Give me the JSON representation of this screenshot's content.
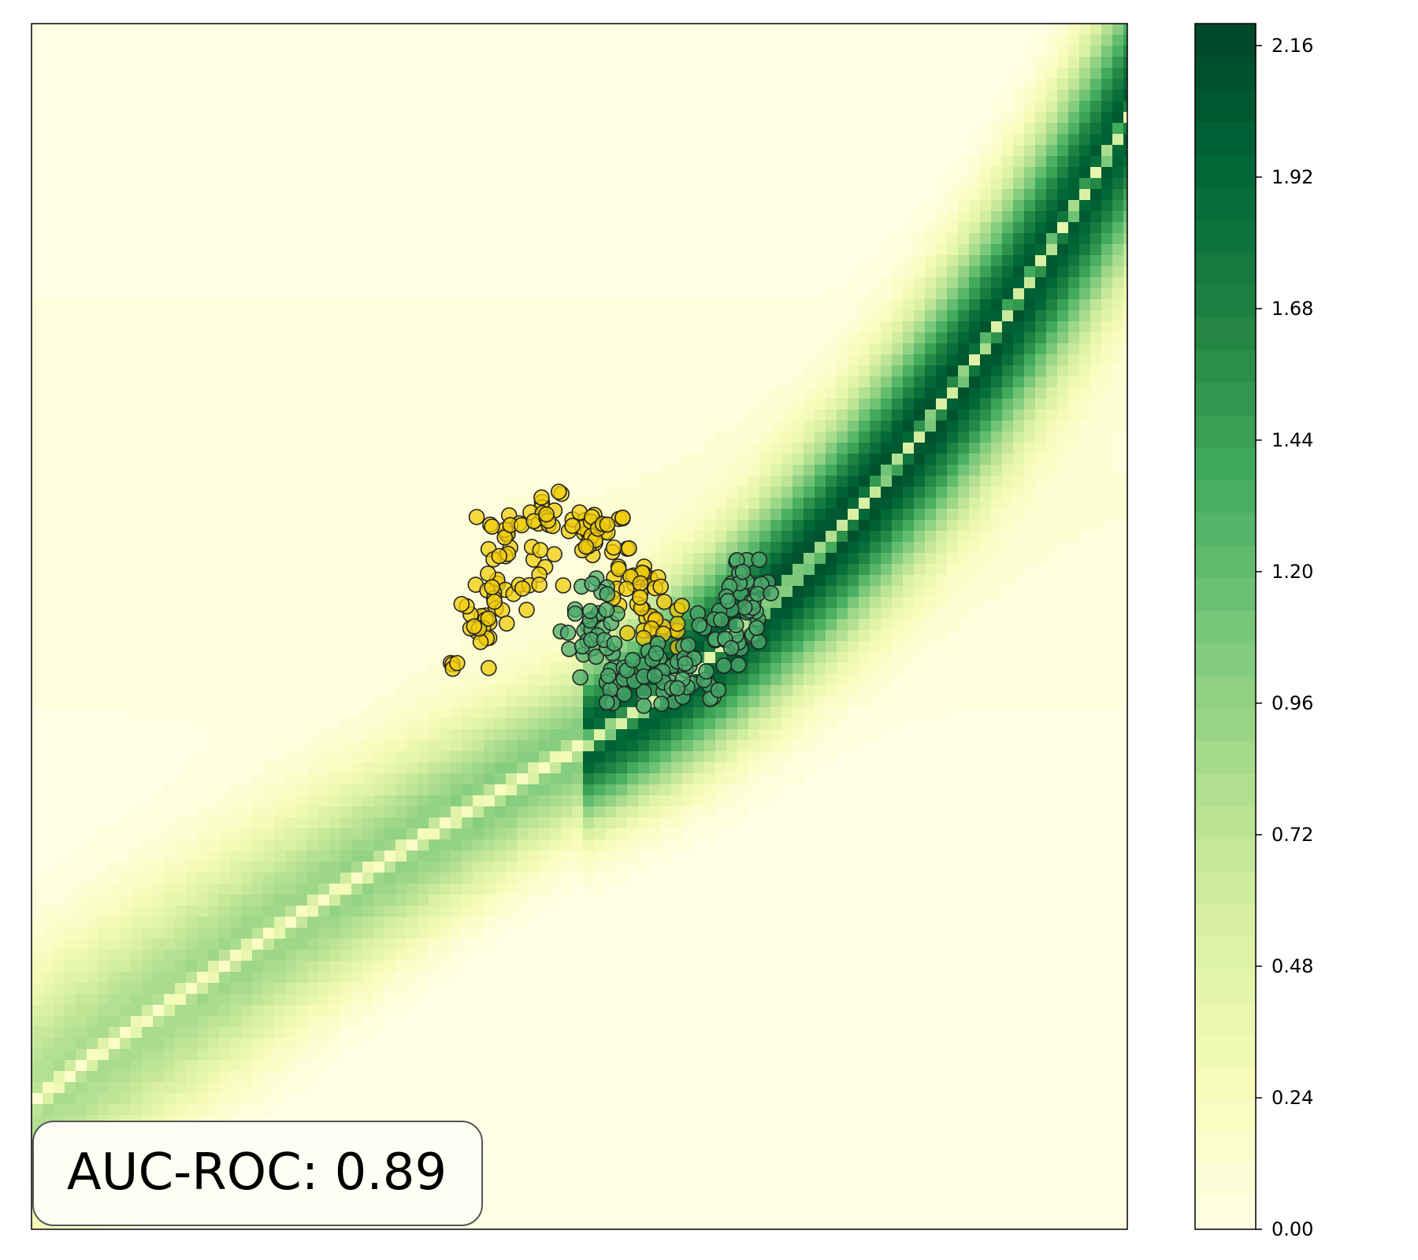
{
  "chart_data": {
    "type": "scatter",
    "title": "",
    "xlabel": "",
    "ylabel": "",
    "xlim": [
      -6,
      6
    ],
    "ylim": [
      -6,
      6
    ],
    "grid": false,
    "background": "contourf uncertainty map (YlGn colormap)",
    "colorbar": {
      "min": 0.0,
      "max": 2.2,
      "ticks": [
        "0.00",
        "0.24",
        "0.48",
        "0.72",
        "0.96",
        "1.20",
        "1.44",
        "1.68",
        "1.92",
        "2.16"
      ],
      "colors": [
        "#ffffe5",
        "#f7fcb9",
        "#d9f0a3",
        "#addd8e",
        "#78c679",
        "#41ab5d",
        "#238443",
        "#006837",
        "#004529"
      ]
    },
    "series": [
      {
        "class": 0,
        "color": "#f2cc0c",
        "points": [
          [
            -0.9,
            0.9
          ],
          [
            -0.6,
            1.1
          ],
          [
            -0.3,
            1.15
          ],
          [
            0.0,
            1.05
          ],
          [
            0.3,
            0.9
          ],
          [
            0.6,
            0.6
          ],
          [
            0.8,
            0.3
          ],
          [
            0.9,
            0.0
          ],
          [
            -1.0,
            0.5
          ],
          [
            -1.1,
            0.1
          ],
          [
            -1.2,
            -0.2
          ],
          [
            -0.8,
            0.2
          ],
          [
            -0.4,
            0.6
          ],
          [
            0.1,
            0.8
          ],
          [
            0.5,
            0.4
          ],
          [
            0.75,
            0.1
          ]
        ]
      },
      {
        "class": 1,
        "color": "#4bab6c",
        "points": [
          [
            0.1,
            0.3
          ],
          [
            0.0,
            -0.1
          ],
          [
            0.2,
            -0.4
          ],
          [
            0.5,
            -0.55
          ],
          [
            0.9,
            -0.6
          ],
          [
            1.3,
            -0.5
          ],
          [
            1.6,
            -0.3
          ],
          [
            1.8,
            0.0
          ],
          [
            1.9,
            0.3
          ],
          [
            1.8,
            0.6
          ],
          [
            0.3,
            0.0
          ],
          [
            0.7,
            -0.35
          ],
          [
            1.1,
            -0.4
          ],
          [
            1.5,
            0.1
          ]
        ]
      }
    ],
    "annotation": "AUC-ROC: 0.89"
  }
}
